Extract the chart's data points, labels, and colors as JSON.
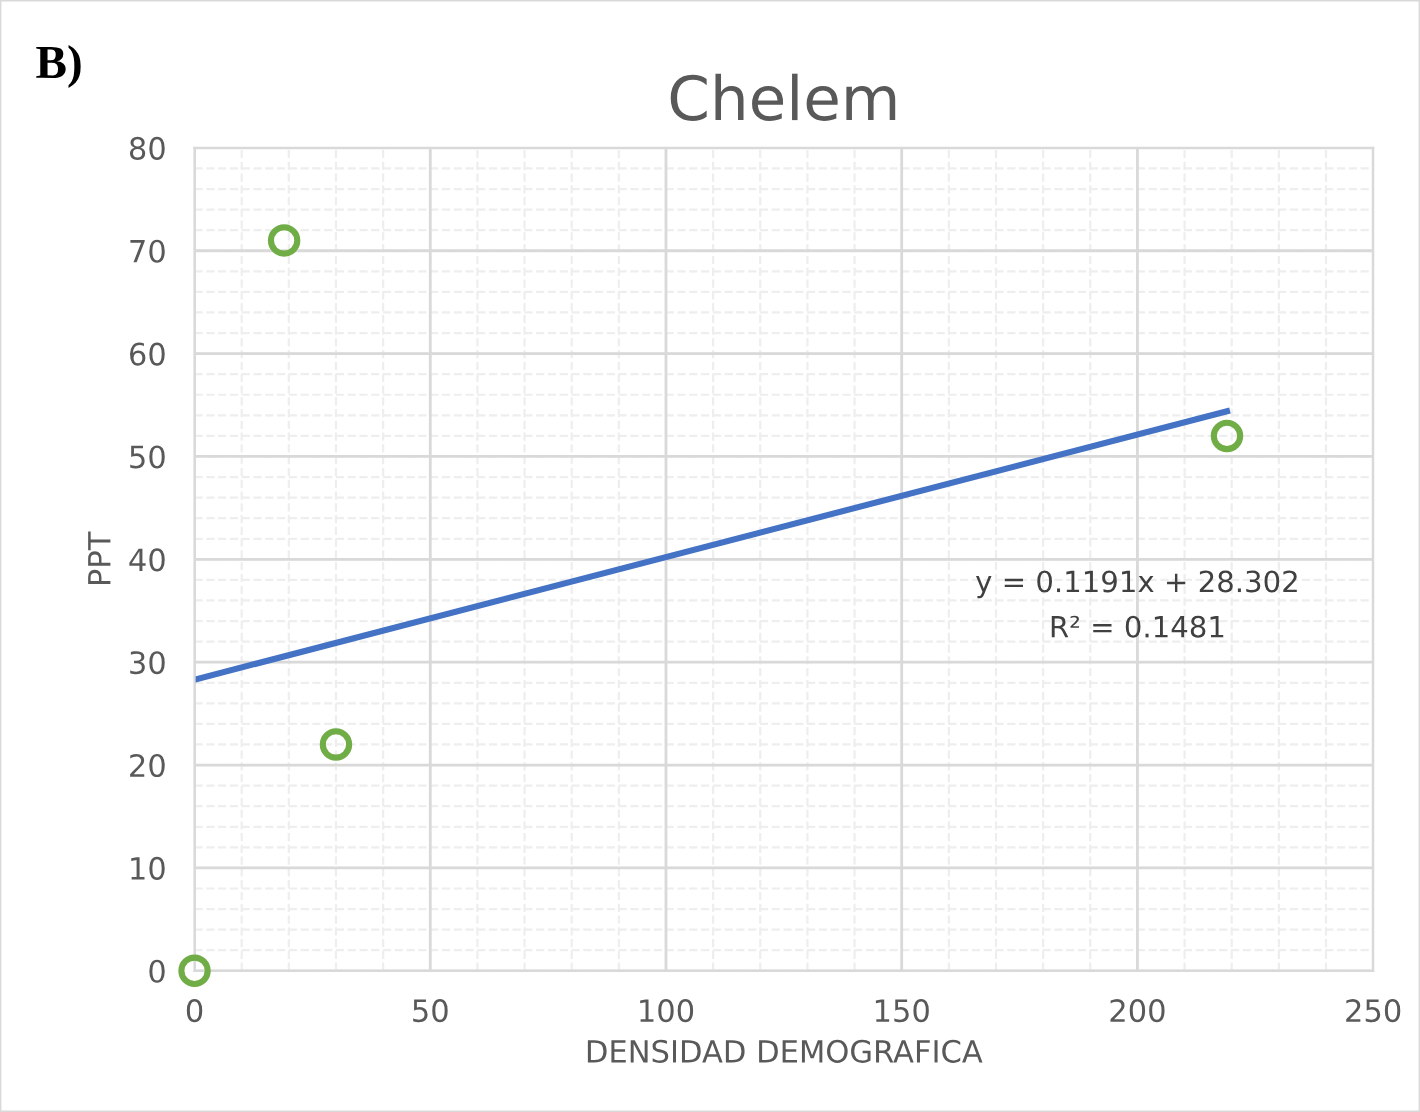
{
  "chart_data": {
    "type": "scatter",
    "title": "Chelem",
    "xlabel": "DENSIDAD DEMOGRAFICA",
    "ylabel": "PPT",
    "x": [
      0,
      19,
      30,
      219
    ],
    "series": [
      {
        "color": "#70ad47",
        "values": [
          0,
          71,
          22,
          52
        ],
        "marker": "circle"
      },
      {
        "type": "line",
        "color": "#4472c4",
        "x": [
          0,
          219
        ],
        "values": [
          28.3,
          54.4
        ],
        "marker": "none",
        "line_style": "solid"
      }
    ],
    "annotations": [
      "B)",
      "y = 0.1191x + 28.302",
      "R² = 0.1481"
    ],
    "xlim": [
      0,
      250
    ],
    "xticks": [
      0,
      50,
      100,
      150,
      200,
      250
    ],
    "ylim": [
      0,
      80
    ],
    "yticks": [
      0,
      10,
      20,
      30,
      40,
      50,
      60,
      70,
      80
    ],
    "grid": true,
    "legend": false
  }
}
